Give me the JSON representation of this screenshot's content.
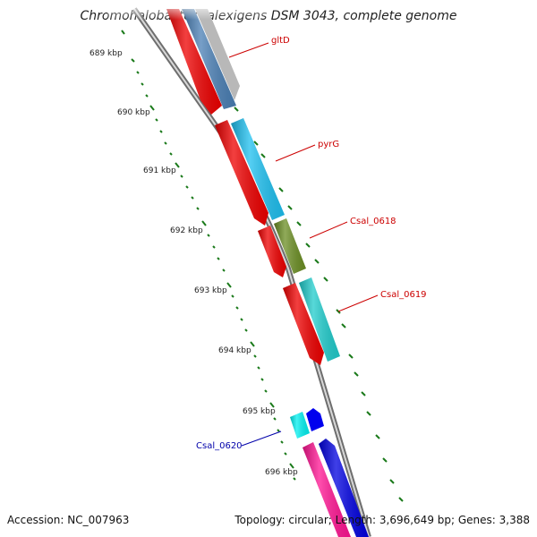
{
  "title": "Chromohalobacter salexigens DSM 3043, complete genome",
  "footer": {
    "accession": "Accession: NC_007963",
    "stats": "Topology: circular; Length: 3,696,649 bp; Genes: 3,388"
  },
  "colors": {
    "backbone": "#8c8c8c",
    "ticks": "#1a7a1a",
    "forward_label": "#cc0000",
    "reverse_label": "#0000aa"
  },
  "ruler": {
    "labels": [
      "689 kbp",
      "690 kbp",
      "691 kbp",
      "692 kbp",
      "693 kbp",
      "694 kbp",
      "695 kbp",
      "696 kbp"
    ]
  },
  "genes": {
    "gltD": "gltD",
    "pyrG": "pyrG",
    "csal0618": "Csal_0618",
    "csal0619": "Csal_0619",
    "csal0620": "Csal_0620"
  }
}
